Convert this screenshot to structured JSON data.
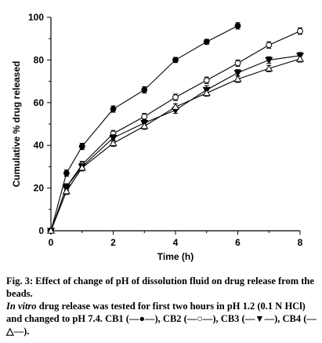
{
  "chart_data": {
    "type": "line",
    "title": "",
    "xlabel": "Time (h)",
    "ylabel": "Cumulative % drug released",
    "xlim": [
      0,
      8
    ],
    "ylim": [
      0,
      100
    ],
    "xticks": [
      0,
      2,
      4,
      6,
      8
    ],
    "yticks": [
      0,
      20,
      40,
      60,
      80,
      100
    ],
    "grid": false,
    "legend": "none",
    "series": [
      {
        "marker": "filled-circle",
        "x": [
          0,
          0.5,
          1,
          2,
          3,
          4,
          5,
          6
        ],
        "y": [
          0,
          27,
          39.5,
          57,
          66,
          80,
          88.5,
          96
        ],
        "err": [
          0,
          1.5,
          1.5,
          1.5,
          1.5,
          1.2,
          1.2,
          1.5
        ]
      },
      {
        "marker": "open-circle",
        "x": [
          0,
          0.5,
          1,
          2,
          3,
          4,
          5,
          6,
          7,
          8
        ],
        "y": [
          0,
          20.5,
          31,
          45.5,
          53.5,
          62.5,
          70.5,
          78.5,
          87,
          93.5
        ],
        "err": [
          0,
          1.5,
          1.5,
          1.5,
          1.5,
          1.5,
          1.5,
          1.5,
          1.5,
          1.5
        ]
      },
      {
        "marker": "filled-triangle-down",
        "x": [
          0,
          0.5,
          1,
          2,
          3,
          4,
          5,
          6,
          7,
          8
        ],
        "y": [
          0,
          20.5,
          30,
          43.5,
          50.5,
          56.5,
          66,
          74,
          80,
          82
        ],
        "err": [
          0,
          1.5,
          1.5,
          1.5,
          1.5,
          1.5,
          2.0,
          1.5,
          1.5,
          1.5
        ]
      },
      {
        "marker": "open-triangle-up",
        "x": [
          0,
          0.5,
          1,
          2,
          3,
          4,
          5,
          6,
          7,
          8
        ],
        "y": [
          0,
          18.5,
          29.5,
          41,
          49,
          58,
          64.5,
          71,
          76,
          80.5
        ],
        "err": [
          0,
          1.5,
          1.5,
          1.5,
          1.5,
          1.5,
          1.5,
          1.5,
          1.5,
          1.5
        ]
      }
    ]
  },
  "caption": {
    "fig_label": "Fig. 3: Effect of change of pH of dissolution fluid on drug release from the beads.",
    "line2_italic": "In vitro",
    "line2_rest": " drug release was tested for first two hours in pH 1.2 (0.1 N HCl) and changed to pH 7.4. CB1 (—●—), CB2 (—○—), CB3 (—▼—), CB4 (—△—)."
  }
}
